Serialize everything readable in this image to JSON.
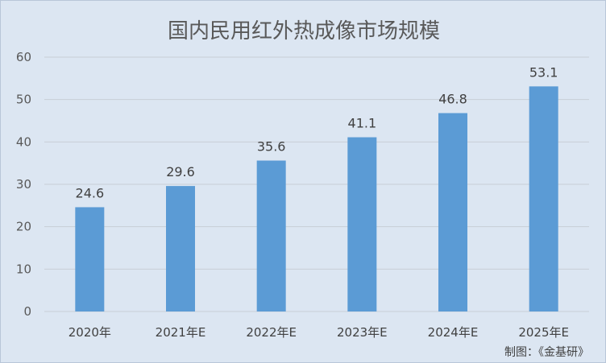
{
  "chart_data": {
    "type": "bar",
    "title": "国内民用红外热成像市场规模",
    "categories": [
      "2020年",
      "2021年E",
      "2022年E",
      "2023年E",
      "2024年E",
      "2025年E"
    ],
    "values": [
      24.6,
      29.6,
      35.6,
      41.1,
      46.8,
      53.1
    ],
    "ylim": [
      0,
      60
    ],
    "yticks": [
      0,
      10,
      20,
      30,
      40,
      50,
      60
    ],
    "grid": true,
    "bar_color": "#5b9bd5",
    "data_labels": true
  },
  "credit": "制图：《金基研》"
}
